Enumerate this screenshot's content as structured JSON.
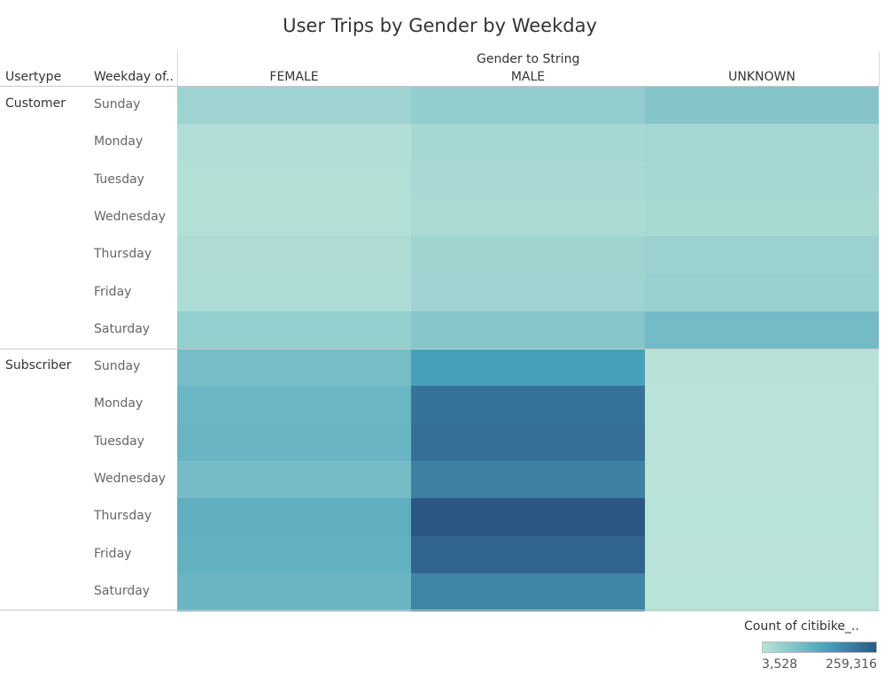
{
  "chart_data": {
    "type": "heatmap",
    "title": "User Trips by Gender by Weekday",
    "column_group_label": "Gender to String",
    "row_headers": [
      "Usertype",
      "Weekday of.."
    ],
    "columns": [
      "FEMALE",
      "MALE",
      "UNKNOWN"
    ],
    "groups": [
      {
        "name": "Customer",
        "rows": [
          {
            "day": "Sunday",
            "values": [
              38000,
              52000,
              70000
            ]
          },
          {
            "day": "Monday",
            "values": [
              14000,
              27000,
              30000
            ]
          },
          {
            "day": "Tuesday",
            "values": [
              13000,
              25000,
              28000
            ]
          },
          {
            "day": "Wednesday",
            "values": [
              12000,
              22000,
              26000
            ]
          },
          {
            "day": "Thursday",
            "values": [
              18000,
              36000,
              42000
            ]
          },
          {
            "day": "Friday",
            "values": [
              20000,
              38000,
              45000
            ]
          },
          {
            "day": "Saturday",
            "values": [
              50000,
              68000,
              92000
            ]
          }
        ]
      },
      {
        "name": "Subscriber",
        "rows": [
          {
            "day": "Sunday",
            "values": [
              88000,
              150000,
              5000
            ]
          },
          {
            "day": "Monday",
            "values": [
              102000,
              218000,
              4000
            ]
          },
          {
            "day": "Tuesday",
            "values": [
              104000,
              222000,
              3800
            ]
          },
          {
            "day": "Wednesday",
            "values": [
              90000,
              195000,
              3528
            ]
          },
          {
            "day": "Thursday",
            "values": [
              118000,
              259316,
              4200
            ]
          },
          {
            "day": "Friday",
            "values": [
              112000,
              240000,
              4100
            ]
          },
          {
            "day": "Saturday",
            "values": [
              105000,
              190000,
              4500
            ]
          }
        ]
      }
    ],
    "color_legend": {
      "title": "Count of citibike_..",
      "min": 3528,
      "max": 259316,
      "min_label": "3,528",
      "max_label": "259,316",
      "color_min": "#b9e3d8",
      "color_mid": "#4aa3bb",
      "color_max": "#2c5785"
    }
  }
}
